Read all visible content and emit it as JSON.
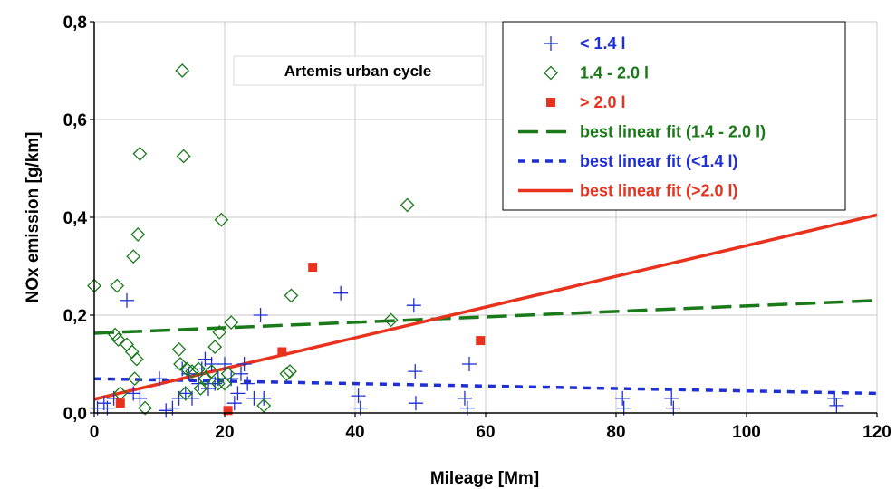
{
  "chart_data": {
    "type": "scatter",
    "annotation": "Artemis urban cycle",
    "xlabel": "Mileage [Mm]",
    "ylabel": "NOx emission [g/km]",
    "xlim": [
      0,
      120
    ],
    "ylim": [
      0,
      0.8
    ],
    "x_ticks": [
      "0",
      "20",
      "40",
      "60",
      "80",
      "100",
      "120"
    ],
    "y_ticks": [
      "0,0",
      "0,2",
      "0,4",
      "0,6",
      "0,8"
    ],
    "grid": true,
    "legend_position": "top-right",
    "colors": {
      "blue": "#1f2fd6",
      "green": "#1a7a1a",
      "red": "#e8321e"
    },
    "series": [
      {
        "name": "< 1.4 l",
        "marker": "plus",
        "color": "#1f2fd6",
        "points": [
          [
            0.5,
            0.01
          ],
          [
            1.5,
            0.02
          ],
          [
            2,
            0.01
          ],
          [
            3,
            0.03
          ],
          [
            5,
            0.23
          ],
          [
            6,
            0.04
          ],
          [
            7,
            0.03
          ],
          [
            10,
            0.07
          ],
          [
            11,
            0.005
          ],
          [
            12,
            0.01
          ],
          [
            13,
            0.03
          ],
          [
            13.5,
            0.09
          ],
          [
            14,
            0.04
          ],
          [
            14.5,
            0.08
          ],
          [
            15,
            0.03
          ],
          [
            16,
            0.06
          ],
          [
            16.5,
            0.09
          ],
          [
            17,
            0.11
          ],
          [
            17.5,
            0.05
          ],
          [
            18,
            0.1
          ],
          [
            18.5,
            0.06
          ],
          [
            19,
            0.07
          ],
          [
            20,
            0.1
          ],
          [
            21,
            0.07
          ],
          [
            21.5,
            0.02
          ],
          [
            22,
            0.04
          ],
          [
            22.5,
            0.08
          ],
          [
            23,
            0.1
          ],
          [
            23.5,
            0.06
          ],
          [
            24.5,
            0.03
          ],
          [
            25.5,
            0.2
          ],
          [
            26,
            0.03
          ],
          [
            37.8,
            0.245
          ],
          [
            40.5,
            0.035
          ],
          [
            40.8,
            0.01
          ],
          [
            49,
            0.22
          ],
          [
            49.2,
            0.085
          ],
          [
            49.3,
            0.02
          ],
          [
            56.8,
            0.03
          ],
          [
            57.2,
            0.01
          ],
          [
            57.5,
            0.1
          ],
          [
            81,
            0.03
          ],
          [
            81.2,
            0.01
          ],
          [
            88.5,
            0.03
          ],
          [
            88.8,
            0.01
          ],
          [
            113.5,
            0.03
          ],
          [
            113.8,
            0.015
          ]
        ]
      },
      {
        "name": "1.4 - 2.0 l",
        "marker": "diamond",
        "color": "#1a7a1a",
        "points": [
          [
            0,
            0.26
          ],
          [
            3.2,
            0.16
          ],
          [
            3.5,
            0.26
          ],
          [
            3.7,
            0.15
          ],
          [
            4,
            0.04
          ],
          [
            5,
            0.14
          ],
          [
            5.8,
            0.125
          ],
          [
            6,
            0.32
          ],
          [
            6.2,
            0.07
          ],
          [
            6.5,
            0.11
          ],
          [
            6.7,
            0.365
          ],
          [
            7,
            0.53
          ],
          [
            7.8,
            0.01
          ],
          [
            13,
            0.13
          ],
          [
            13.2,
            0.1
          ],
          [
            13.5,
            0.7
          ],
          [
            13.7,
            0.525
          ],
          [
            14,
            0.04
          ],
          [
            14.2,
            0.09
          ],
          [
            15,
            0.085
          ],
          [
            16,
            0.09
          ],
          [
            16.3,
            0.05
          ],
          [
            17,
            0.07
          ],
          [
            18,
            0.085
          ],
          [
            18.5,
            0.135
          ],
          [
            19,
            0.06
          ],
          [
            19.2,
            0.165
          ],
          [
            19.5,
            0.395
          ],
          [
            20,
            0.06
          ],
          [
            20.5,
            0.08
          ],
          [
            21,
            0.185
          ],
          [
            26,
            0.015
          ],
          [
            29.5,
            0.08
          ],
          [
            30,
            0.085
          ],
          [
            30.2,
            0.24
          ],
          [
            45.5,
            0.19
          ],
          [
            48,
            0.425
          ]
        ]
      },
      {
        "name": "> 2.0 l",
        "marker": "square",
        "color": "#e8321e",
        "points": [
          [
            4,
            0.02
          ],
          [
            20.5,
            0.005
          ],
          [
            28.8,
            0.125
          ],
          [
            33.5,
            0.298
          ],
          [
            59.2,
            0.148
          ]
        ]
      }
    ],
    "fits": [
      {
        "name": "best linear fit (1.4 - 2.0 l)",
        "style": "long-dash",
        "color": "#1a7a1a",
        "points": [
          [
            0,
            0.163
          ],
          [
            120,
            0.23
          ]
        ]
      },
      {
        "name": "best linear fit (<1.4 l)",
        "style": "short-dash",
        "color": "#1f2fd6",
        "points": [
          [
            0,
            0.07
          ],
          [
            120,
            0.04
          ]
        ]
      },
      {
        "name": "best linear fit (>2.0 l)",
        "style": "solid",
        "color": "#e8321e",
        "points": [
          [
            0,
            0.028
          ],
          [
            120,
            0.405
          ]
        ]
      }
    ]
  }
}
